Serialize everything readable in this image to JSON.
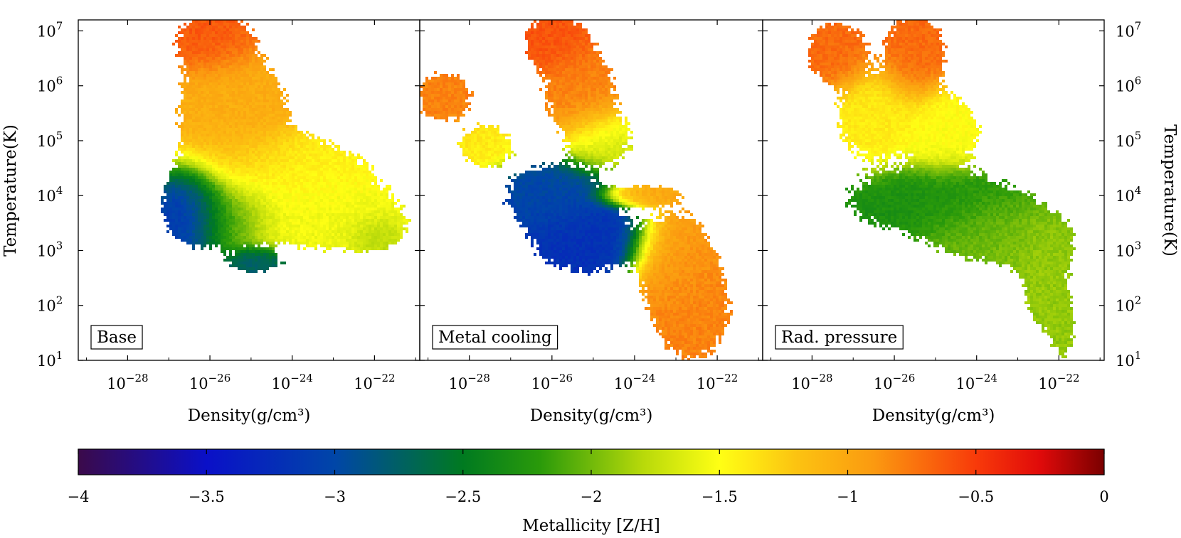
{
  "chart_data": {
    "type": "heatmap",
    "panels": [
      {
        "label": "Base",
        "xlabel": "Density(g/cm³)",
        "ylabel": "Temperature(K)",
        "blobs": [
          {
            "x": -25.9,
            "y": 6.8,
            "sx": 0.55,
            "sy": 0.35,
            "w": 1.0,
            "z": -0.6
          },
          {
            "x": -25.4,
            "y": 5.6,
            "sx": 0.75,
            "sy": 0.55,
            "w": 0.9,
            "z": -1.0
          },
          {
            "x": -25.5,
            "y": 5.2,
            "sx": 0.7,
            "sy": 0.8,
            "w": 0.6,
            "z": -1.1
          },
          {
            "x": -24.4,
            "y": 4.6,
            "sx": 1.2,
            "sy": 0.35,
            "w": 0.8,
            "z": -1.4
          },
          {
            "x": -23.8,
            "y": 3.9,
            "sx": 1.3,
            "sy": 0.45,
            "w": 0.9,
            "z": -1.5
          },
          {
            "x": -22.7,
            "y": 3.5,
            "sx": 0.9,
            "sy": 0.3,
            "w": 0.7,
            "z": -1.6
          },
          {
            "x": -26.4,
            "y": 3.8,
            "sx": 0.45,
            "sy": 0.4,
            "w": 1.0,
            "z": -3.4
          },
          {
            "x": -25.6,
            "y": 3.7,
            "sx": 0.6,
            "sy": 0.35,
            "w": 0.9,
            "z": -2.3
          },
          {
            "x": -24.9,
            "y": 2.8,
            "sx": 0.45,
            "sy": 0.15,
            "w": 0.7,
            "z": -2.8
          },
          {
            "x": -22.0,
            "y": 3.3,
            "sx": 0.35,
            "sy": 0.2,
            "w": 0.6,
            "z": -1.9
          }
        ]
      },
      {
        "label": "Metal cooling",
        "xlabel": "Density(g/cm³)",
        "ylabel": "",
        "blobs": [
          {
            "x": -25.9,
            "y": 6.8,
            "sx": 0.45,
            "sy": 0.3,
            "w": 1.0,
            "z": -0.6
          },
          {
            "x": -25.3,
            "y": 5.9,
            "sx": 0.6,
            "sy": 0.5,
            "w": 0.8,
            "z": -0.8
          },
          {
            "x": -24.8,
            "y": 5.0,
            "sx": 0.55,
            "sy": 0.35,
            "w": 0.6,
            "z": -1.7
          },
          {
            "x": -28.6,
            "y": 5.8,
            "sx": 0.45,
            "sy": 0.3,
            "w": 0.8,
            "z": -0.8
          },
          {
            "x": -27.6,
            "y": 4.9,
            "sx": 0.45,
            "sy": 0.25,
            "w": 0.8,
            "z": -1.4
          },
          {
            "x": -26.0,
            "y": 4.0,
            "sx": 0.7,
            "sy": 0.35,
            "w": 1.0,
            "z": -3.0
          },
          {
            "x": -25.2,
            "y": 3.2,
            "sx": 0.8,
            "sy": 0.4,
            "w": 0.9,
            "z": -3.2
          },
          {
            "x": -23.8,
            "y": 4.0,
            "sx": 0.55,
            "sy": 0.12,
            "w": 0.9,
            "z": -1.0
          },
          {
            "x": -23.0,
            "y": 2.8,
            "sx": 0.55,
            "sy": 0.55,
            "w": 1.0,
            "z": -0.9
          },
          {
            "x": -22.6,
            "y": 1.9,
            "sx": 0.55,
            "sy": 0.55,
            "w": 1.0,
            "z": -0.8
          }
        ]
      },
      {
        "label": "Rad. pressure",
        "xlabel": "Density(g/cm³)",
        "ylabel": "Temperature(K)",
        "blobs": [
          {
            "x": -27.4,
            "y": 6.6,
            "sx": 0.45,
            "sy": 0.35,
            "w": 1.0,
            "z": -0.7
          },
          {
            "x": -25.5,
            "y": 6.6,
            "sx": 0.45,
            "sy": 0.45,
            "w": 1.0,
            "z": -0.7
          },
          {
            "x": -26.5,
            "y": 5.4,
            "sx": 0.6,
            "sy": 0.5,
            "w": 0.8,
            "z": -1.4
          },
          {
            "x": -24.8,
            "y": 5.2,
            "sx": 0.6,
            "sy": 0.45,
            "w": 0.8,
            "z": -1.5
          },
          {
            "x": -25.2,
            "y": 3.9,
            "sx": 1.2,
            "sy": 0.35,
            "w": 1.0,
            "z": -2.3
          },
          {
            "x": -23.7,
            "y": 3.4,
            "sx": 0.9,
            "sy": 0.4,
            "w": 0.9,
            "z": -2.0
          },
          {
            "x": -22.4,
            "y": 3.1,
            "sx": 0.5,
            "sy": 0.35,
            "w": 0.8,
            "z": -1.9
          },
          {
            "x": -22.3,
            "y": 2.2,
            "sx": 0.35,
            "sy": 0.45,
            "w": 0.8,
            "z": -1.9
          },
          {
            "x": -21.9,
            "y": 1.5,
            "sx": 0.2,
            "sy": 0.35,
            "w": 0.6,
            "z": -1.9
          }
        ]
      }
    ],
    "x_axis": {
      "scale": "log",
      "range_exp": [
        -29.2,
        -20.9
      ],
      "ticks": [
        {
          "exp": -28,
          "label": "10",
          "sup": "−28"
        },
        {
          "exp": -26,
          "label": "10",
          "sup": "−26"
        },
        {
          "exp": -24,
          "label": "10",
          "sup": "−24"
        },
        {
          "exp": -22,
          "label": "10",
          "sup": "−22"
        }
      ]
    },
    "y_axis": {
      "scale": "log",
      "range_exp": [
        1,
        7.2
      ],
      "ticks": [
        {
          "exp": 1,
          "label": "10",
          "sup": "1"
        },
        {
          "exp": 2,
          "label": "10",
          "sup": "2"
        },
        {
          "exp": 3,
          "label": "10",
          "sup": "3"
        },
        {
          "exp": 4,
          "label": "10",
          "sup": "4"
        },
        {
          "exp": 5,
          "label": "10",
          "sup": "5"
        },
        {
          "exp": 6,
          "label": "10",
          "sup": "6"
        },
        {
          "exp": 7,
          "label": "10",
          "sup": "7"
        }
      ]
    },
    "colorbar": {
      "label": "Metallicity [Z/H]",
      "range": [
        -4,
        0
      ],
      "ticks": [
        {
          "v": -4,
          "label": "−4"
        },
        {
          "v": -3.5,
          "label": "−3.5"
        },
        {
          "v": -3,
          "label": "−3"
        },
        {
          "v": -2.5,
          "label": "−2.5"
        },
        {
          "v": -2,
          "label": "−2"
        },
        {
          "v": -1.5,
          "label": "−1.5"
        },
        {
          "v": -1,
          "label": "−1"
        },
        {
          "v": -0.5,
          "label": "−0.5"
        },
        {
          "v": 0,
          "label": "0"
        }
      ],
      "colormap": [
        {
          "v": -4.0,
          "c": "#3b0a4a"
        },
        {
          "v": -3.5,
          "c": "#0a10c8"
        },
        {
          "v": -3.0,
          "c": "#0046a8"
        },
        {
          "v": -2.5,
          "c": "#007a20"
        },
        {
          "v": -2.2,
          "c": "#2a9a0a"
        },
        {
          "v": -1.8,
          "c": "#b7d90a"
        },
        {
          "v": -1.5,
          "c": "#ffff14"
        },
        {
          "v": -1.2,
          "c": "#fcc311"
        },
        {
          "v": -0.9,
          "c": "#fb9a10"
        },
        {
          "v": -0.5,
          "c": "#f83a0a"
        },
        {
          "v": -0.25,
          "c": "#e00a0a"
        },
        {
          "v": 0.0,
          "c": "#7a0000"
        }
      ]
    }
  }
}
